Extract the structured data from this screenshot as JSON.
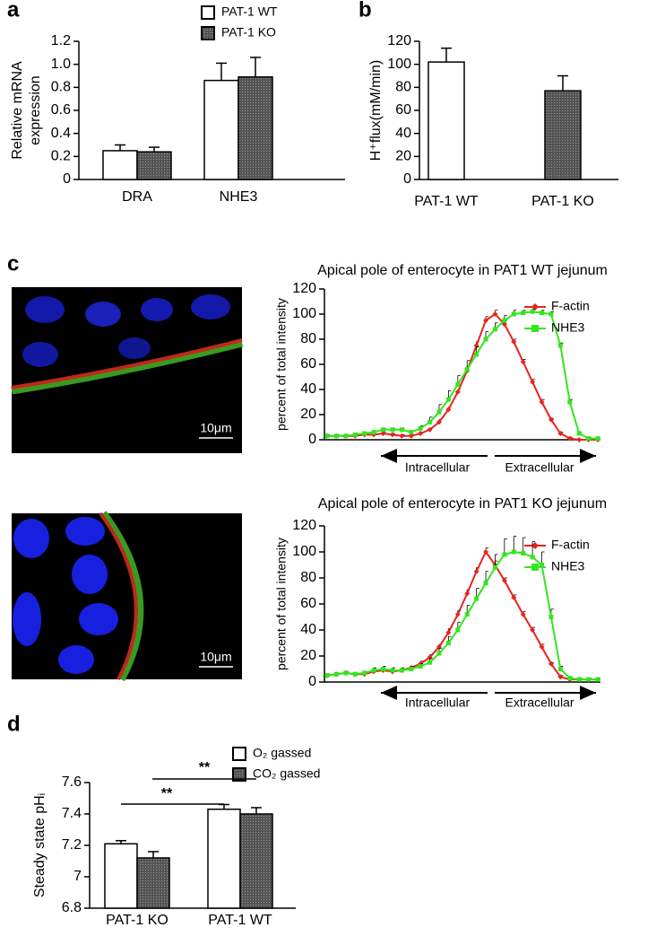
{
  "chart_data": [
    {
      "type": "bar",
      "panel": "a",
      "y_label": [
        "Relative mRNA",
        "expression"
      ],
      "categories": [
        "DRA",
        "NHE3"
      ],
      "series": [
        {
          "name": "PAT-1 WT",
          "color": "#ffffff",
          "values": [
            0.25,
            0.86
          ],
          "errors": [
            0.05,
            0.15
          ]
        },
        {
          "name": "PAT-1 KO",
          "color": "#555555",
          "values": [
            0.24,
            0.89
          ],
          "errors": [
            0.04,
            0.17
          ]
        }
      ],
      "ylim": [
        0,
        1.2
      ],
      "yticks": [
        0,
        0.2,
        0.4,
        0.6,
        0.8,
        {
          "value": 1,
          "label": "1.0"
        },
        1.2
      ],
      "legend": "top"
    },
    {
      "type": "bar",
      "panel": "b",
      "y_label": [
        "H⁺flux(mM/min)"
      ],
      "categories": [
        "PAT-1 WT",
        "PAT-1 KO"
      ],
      "series": [
        {
          "name": null,
          "colors": [
            "#ffffff",
            "#555555"
          ],
          "values": [
            102,
            77
          ],
          "errors": [
            12,
            13
          ]
        }
      ],
      "ylim": [
        0,
        120
      ],
      "yticks": [
        0,
        20,
        40,
        60,
        80,
        100,
        120
      ]
    },
    {
      "type": "line",
      "panel": "c",
      "title": "Apical pole of enterocyte in PAT1 WT jejunum",
      "y_label": [
        "percent of total intensity"
      ],
      "scale_bar": "10μm",
      "annotations": [
        "Intracellular",
        "Extracellular"
      ],
      "series": [
        {
          "name": "F-actin",
          "color": "#e8231e",
          "marker": "diamond",
          "values": [
            3,
            3,
            3,
            3,
            4,
            4,
            5,
            4,
            3,
            3,
            5,
            8,
            14,
            24,
            38,
            55,
            75,
            95,
            100,
            92,
            78,
            62,
            46,
            30,
            16,
            5,
            1,
            0,
            0,
            0
          ],
          "errors": [
            1,
            1,
            1,
            1,
            1,
            1,
            1,
            1,
            1,
            1,
            1,
            1,
            2,
            2,
            2,
            3,
            3,
            3,
            3,
            3,
            2,
            2,
            2,
            2,
            1,
            1,
            1,
            0,
            0,
            0
          ]
        },
        {
          "name": "NHE3",
          "color": "#33e61e",
          "marker": "square",
          "values": [
            3,
            3,
            3,
            4,
            5,
            6,
            8,
            8,
            8,
            6,
            9,
            14,
            22,
            32,
            44,
            56,
            68,
            80,
            88,
            95,
            100,
            101,
            102,
            101,
            100,
            75,
            30,
            5,
            1,
            1
          ],
          "errors": [
            1,
            1,
            1,
            1,
            1,
            1,
            1,
            1,
            1,
            1,
            2,
            4,
            6,
            7,
            7,
            7,
            6,
            6,
            5,
            4,
            3,
            2,
            2,
            2,
            2,
            2,
            2,
            1,
            1,
            1
          ]
        }
      ],
      "ylim": [
        0,
        120
      ],
      "yticks": [
        0,
        20,
        40,
        60,
        80,
        100,
        120
      ]
    },
    {
      "type": "line",
      "title": "Apical pole of enterocyte in PAT1 KO jejunum",
      "y_label": [
        "percent of total intensity"
      ],
      "scale_bar": "10μm",
      "annotations": [
        "Intracellular",
        "Extracellular"
      ],
      "series": [
        {
          "name": "F-actin",
          "color": "#e8231e",
          "marker": "diamond",
          "values": [
            5,
            6,
            7,
            6,
            6,
            8,
            9,
            8,
            9,
            11,
            14,
            19,
            27,
            38,
            52,
            68,
            85,
            100,
            90,
            78,
            65,
            52,
            40,
            27,
            14,
            4,
            2,
            2,
            2,
            2
          ],
          "errors": [
            1,
            1,
            1,
            1,
            1,
            1,
            1,
            1,
            1,
            1,
            2,
            2,
            2,
            3,
            3,
            3,
            3,
            3,
            3,
            2,
            2,
            2,
            2,
            2,
            1,
            1,
            1,
            0,
            0,
            0
          ]
        },
        {
          "name": "NHE3",
          "color": "#33e61e",
          "marker": "square",
          "values": [
            5,
            6,
            7,
            6,
            7,
            9,
            10,
            9,
            9,
            10,
            12,
            15,
            22,
            30,
            40,
            52,
            64,
            76,
            88,
            98,
            100,
            99,
            96,
            90,
            50,
            10,
            3,
            2,
            2,
            2
          ],
          "errors": [
            1,
            1,
            1,
            1,
            1,
            2,
            2,
            2,
            2,
            2,
            2,
            3,
            4,
            5,
            6,
            7,
            8,
            9,
            10,
            12,
            12,
            12,
            12,
            10,
            6,
            2,
            1,
            1,
            1,
            1
          ]
        }
      ],
      "ylim": [
        0,
        120
      ],
      "yticks": [
        0,
        20,
        40,
        60,
        80,
        100,
        120
      ]
    },
    {
      "type": "bar",
      "panel": "d",
      "y_label": [
        "Steady state pHᵢ"
      ],
      "categories": [
        "PAT-1 KO",
        "PAT-1 WT"
      ],
      "series": [
        {
          "name": "O₂ gassed",
          "color": "#ffffff",
          "values": [
            7.21,
            7.43
          ],
          "errors": [
            0.02,
            0.03
          ]
        },
        {
          "name": "CO₂ gassed",
          "color": "#555555",
          "values": [
            7.12,
            7.4
          ],
          "errors": [
            0.04,
            0.04
          ]
        }
      ],
      "annotations": [
        "**",
        "**"
      ],
      "ylim": [
        6.8,
        7.6
      ],
      "yticks": [
        6.8,
        7,
        7.2,
        7.4,
        7.6
      ],
      "legend": "top"
    }
  ]
}
